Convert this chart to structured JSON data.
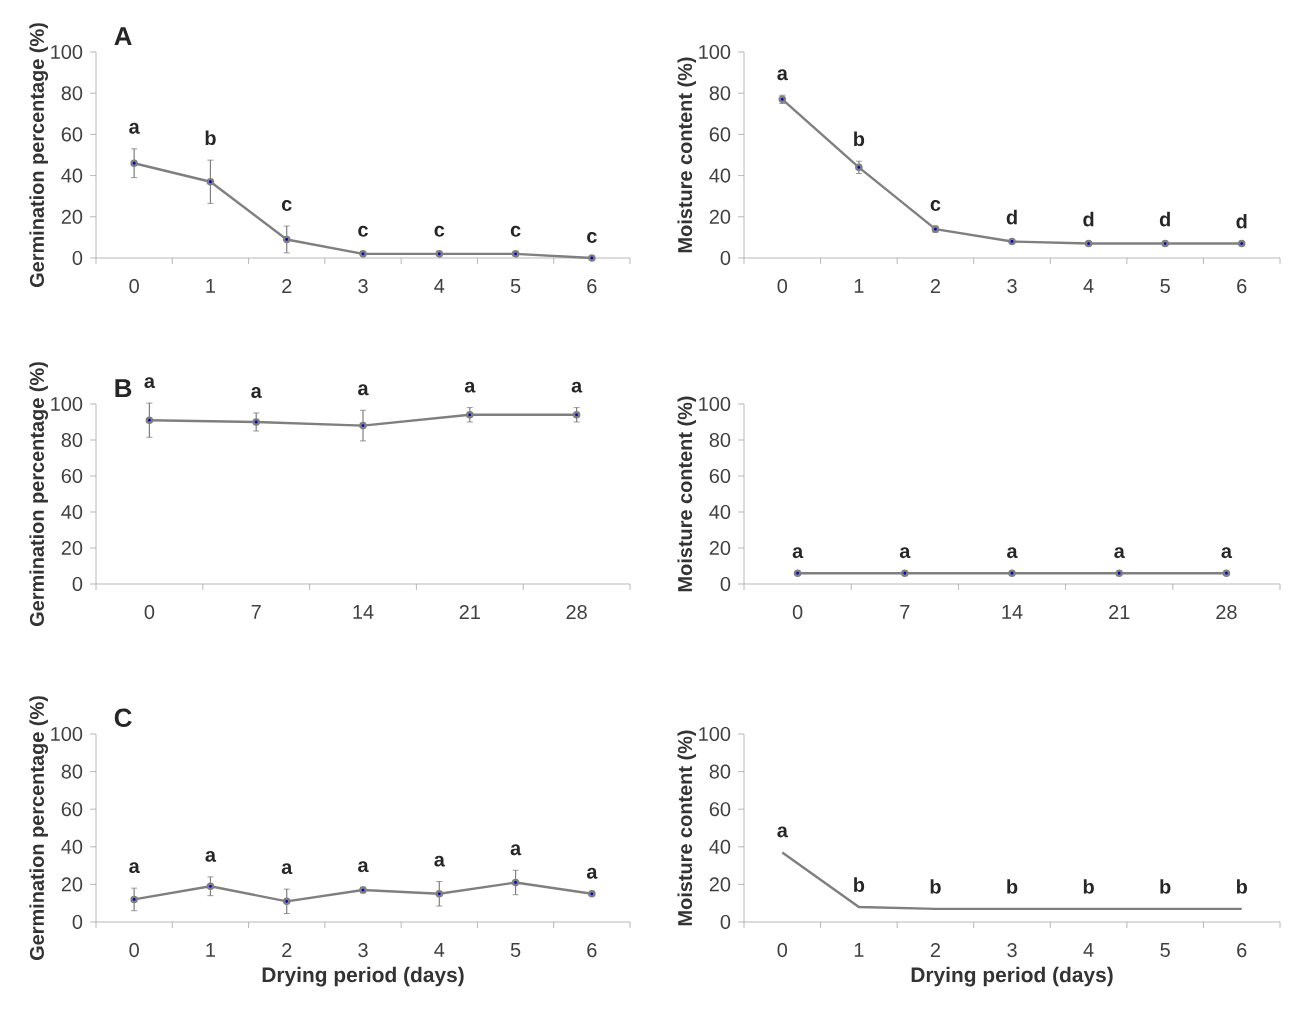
{
  "chart_data": [
    {
      "type": "line",
      "title": "A",
      "ylabel": "Germination percentage (%)",
      "categories": [
        "0",
        "1",
        "2",
        "3",
        "4",
        "5",
        "6"
      ],
      "values": [
        46,
        37,
        9,
        2,
        2,
        2,
        0
      ],
      "errors": [
        7,
        10.5,
        6.5,
        1,
        1,
        1,
        null
      ],
      "color": "#7f7f7f",
      "marker": "circle",
      "ylim": [
        0,
        100
      ],
      "yticks": [
        0,
        20,
        40,
        60,
        80,
        100
      ],
      "grid": false,
      "annotations": [
        {
          "text": "a",
          "x": "0",
          "y": 46
        },
        {
          "text": "b",
          "x": "1",
          "y": 37
        },
        {
          "text": "c",
          "x": "2",
          "y": 9
        },
        {
          "text": "c",
          "x": "3",
          "y": 2
        },
        {
          "text": "c",
          "x": "4",
          "y": 2
        },
        {
          "text": "c",
          "x": "5",
          "y": 2
        },
        {
          "text": "c",
          "x": "6",
          "y": 0
        }
      ]
    },
    {
      "type": "line",
      "ylabel": "Moisture content (%)",
      "categories": [
        "0",
        "1",
        "2",
        "3",
        "4",
        "5",
        "6"
      ],
      "values": [
        77,
        44,
        14,
        8,
        7,
        7,
        7
      ],
      "errors": [
        2,
        3,
        1.5,
        1,
        1,
        1,
        null
      ],
      "color": "#7f7f7f",
      "marker": "circle",
      "ylim": [
        0,
        100
      ],
      "yticks": [
        0,
        20,
        40,
        60,
        80,
        100
      ],
      "grid": false,
      "annotations": [
        {
          "text": "a",
          "x": "0",
          "y": 77
        },
        {
          "text": "b",
          "x": "1",
          "y": 44
        },
        {
          "text": "c",
          "x": "2",
          "y": 14
        },
        {
          "text": "d",
          "x": "3",
          "y": 8
        },
        {
          "text": "d",
          "x": "4",
          "y": 7
        },
        {
          "text": "d",
          "x": "5",
          "y": 7
        },
        {
          "text": "d",
          "x": "6",
          "y": 7
        }
      ]
    },
    {
      "type": "line",
      "title": "B",
      "ylabel": "Germination percentage (%)",
      "categories": [
        "0",
        "7",
        "14",
        "21",
        "28"
      ],
      "values": [
        91,
        90,
        88,
        94,
        94
      ],
      "errors": [
        9.5,
        5,
        8.5,
        4,
        4
      ],
      "color": "#7f7f7f",
      "marker": "circle",
      "ylim": [
        0,
        100
      ],
      "yticks": [
        0,
        20,
        40,
        60,
        80,
        100
      ],
      "grid": false,
      "annotations": [
        {
          "text": "a",
          "x": "0",
          "y": 91
        },
        {
          "text": "a",
          "x": "7",
          "y": 90
        },
        {
          "text": "a",
          "x": "14",
          "y": 88
        },
        {
          "text": "a",
          "x": "21",
          "y": 94
        },
        {
          "text": "a",
          "x": "28",
          "y": 94
        }
      ]
    },
    {
      "type": "line",
      "ylabel": "Moisture content (%)",
      "categories": [
        "0",
        "7",
        "14",
        "21",
        "28"
      ],
      "values": [
        6,
        6,
        6,
        6,
        6
      ],
      "color": "#7f7f7f",
      "marker": "circle",
      "ylim": [
        0,
        100
      ],
      "yticks": [
        0,
        20,
        40,
        60,
        80,
        100
      ],
      "grid": false,
      "annotations": [
        {
          "text": "a",
          "x": "0",
          "y": 6
        },
        {
          "text": "a",
          "x": "7",
          "y": 6
        },
        {
          "text": "a",
          "x": "14",
          "y": 6
        },
        {
          "text": "a",
          "x": "21",
          "y": 6
        },
        {
          "text": "a",
          "x": "28",
          "y": 6
        }
      ]
    },
    {
      "type": "line",
      "title": "C",
      "xlabel": "Drying period (days)",
      "ylabel": "Germination percentage (%)",
      "categories": [
        "0",
        "1",
        "2",
        "3",
        "4",
        "5",
        "6"
      ],
      "values": [
        12,
        19,
        11,
        17,
        15,
        21,
        15
      ],
      "errors": [
        6,
        5,
        6.5,
        1.5,
        6.5,
        6.5,
        null
      ],
      "color": "#7f7f7f",
      "marker": "circle",
      "ylim": [
        0,
        100
      ],
      "yticks": [
        0,
        20,
        40,
        60,
        80,
        100
      ],
      "grid": false,
      "annotations": [
        {
          "text": "a",
          "x": "0",
          "y": 12
        },
        {
          "text": "a",
          "x": "1",
          "y": 19
        },
        {
          "text": "a",
          "x": "2",
          "y": 11
        },
        {
          "text": "a",
          "x": "3",
          "y": 17
        },
        {
          "text": "a",
          "x": "4",
          "y": 15
        },
        {
          "text": "a",
          "x": "5",
          "y": 21
        },
        {
          "text": "a",
          "x": "6",
          "y": 15
        }
      ]
    },
    {
      "type": "line",
      "xlabel": "Drying period (days)",
      "ylabel": "Moisture content (%)",
      "categories": [
        "0",
        "1",
        "2",
        "3",
        "4",
        "5",
        "6"
      ],
      "values": [
        37,
        8,
        7,
        7,
        7,
        7,
        7
      ],
      "color": "#7f7f7f",
      "marker": "none",
      "ylim": [
        0,
        100
      ],
      "yticks": [
        0,
        20,
        40,
        60,
        80,
        100
      ],
      "grid": false,
      "annotations": [
        {
          "text": "a",
          "x": "0",
          "y": 37
        },
        {
          "text": "b",
          "x": "1",
          "y": 8
        },
        {
          "text": "b",
          "x": "2",
          "y": 7
        },
        {
          "text": "b",
          "x": "3",
          "y": 7
        },
        {
          "text": "b",
          "x": "4",
          "y": 7
        },
        {
          "text": "b",
          "x": "5",
          "y": 7
        },
        {
          "text": "b",
          "x": "6",
          "y": 7
        }
      ]
    }
  ]
}
